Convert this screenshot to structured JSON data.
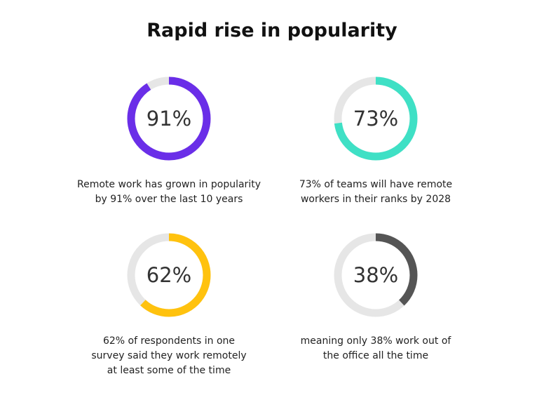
{
  "title": "Rapid rise in popularity",
  "chart_data": {
    "type": "donut",
    "title": "Rapid rise in popularity",
    "track_color": "#e6e6e6",
    "items": [
      {
        "label": "91%",
        "value": 91,
        "color": "#6a2ee8",
        "caption": "Remote work has grown in popularity\nby 91% over the last 10 years"
      },
      {
        "label": "73%",
        "value": 73,
        "color": "#3fe0c5",
        "caption": "73% of teams will have remote\nworkers in their ranks by 2028"
      },
      {
        "label": "62%",
        "value": 62,
        "color": "#ffc20e",
        "caption": "62% of respondents in one\nsurvey said they work remotely\nat least some of the time"
      },
      {
        "label": "38%",
        "value": 38,
        "color": "#555555",
        "caption": "meaning only 38% work out of\nthe office all the time"
      }
    ]
  }
}
